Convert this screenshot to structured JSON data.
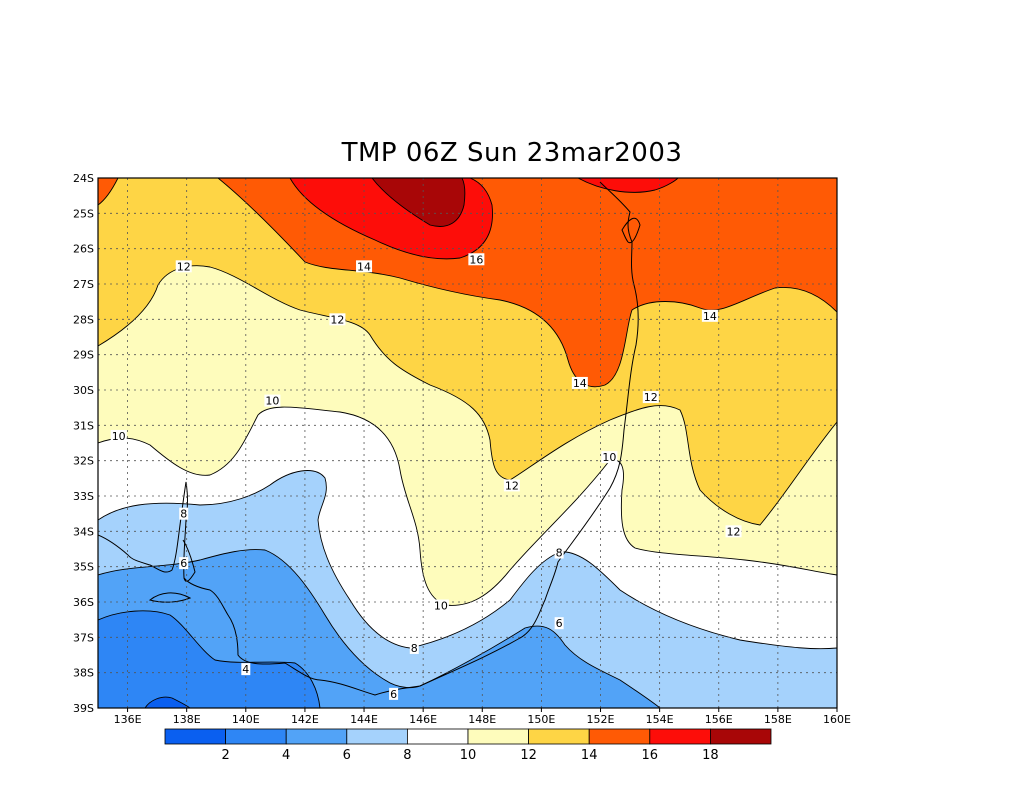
{
  "title": "TMP 06Z Sun 23mar2003",
  "chart_data": {
    "type": "heatmap",
    "variable": "TMP",
    "title": "TMP 06Z Sun 23mar2003",
    "lon_range": [
      135,
      160
    ],
    "lat_range": [
      -39,
      -24
    ],
    "grid": true,
    "x_ticks": [
      "136E",
      "138E",
      "140E",
      "142E",
      "144E",
      "146E",
      "148E",
      "150E",
      "152E",
      "154E",
      "156E",
      "158E",
      "160E"
    ],
    "y_ticks": [
      "24S",
      "25S",
      "26S",
      "27S",
      "28S",
      "29S",
      "30S",
      "31S",
      "32S",
      "33S",
      "34S",
      "35S",
      "36S",
      "37S",
      "38S",
      "39S"
    ],
    "colorbar": {
      "levels": [
        2,
        4,
        6,
        8,
        10,
        12,
        14,
        16,
        18
      ],
      "colors": [
        "#0a5ff0",
        "#2e86f5",
        "#52a3f7",
        "#a5d2fc",
        "#ffffff",
        "#fefcbc",
        "#fed545",
        "#ff5a05",
        "#fd0d09",
        "#a80607"
      ]
    },
    "contour_labels": [
      {
        "value": "12",
        "lon": 137.9,
        "lat": -26.5
      },
      {
        "value": "14",
        "lon": 144.0,
        "lat": -26.5
      },
      {
        "value": "16",
        "lon": 147.8,
        "lat": -26.3
      },
      {
        "value": "12",
        "lon": 143.1,
        "lat": -28.0
      },
      {
        "value": "14",
        "lon": 155.7,
        "lat": -27.9
      },
      {
        "value": "14",
        "lon": 151.3,
        "lat": -29.8
      },
      {
        "value": "12",
        "lon": 153.7,
        "lat": -30.2
      },
      {
        "value": "10",
        "lon": 140.9,
        "lat": -30.3
      },
      {
        "value": "10",
        "lon": 135.7,
        "lat": -31.3
      },
      {
        "value": "10",
        "lon": 152.3,
        "lat": -31.9
      },
      {
        "value": "12",
        "lon": 149.0,
        "lat": -32.7
      },
      {
        "value": "12",
        "lon": 156.5,
        "lat": -34.0
      },
      {
        "value": "8",
        "lon": 137.9,
        "lat": -33.5
      },
      {
        "value": "8",
        "lon": 150.6,
        "lat": -34.6
      },
      {
        "value": "6",
        "lon": 137.9,
        "lat": -34.9
      },
      {
        "value": "10",
        "lon": 146.6,
        "lat": -36.1
      },
      {
        "value": "6",
        "lon": 150.6,
        "lat": -36.6
      },
      {
        "value": "8",
        "lon": 145.7,
        "lat": -37.3
      },
      {
        "value": "4",
        "lon": 140.0,
        "lat": -37.9
      },
      {
        "value": "6",
        "lon": 145.0,
        "lat": -38.6
      }
    ]
  }
}
